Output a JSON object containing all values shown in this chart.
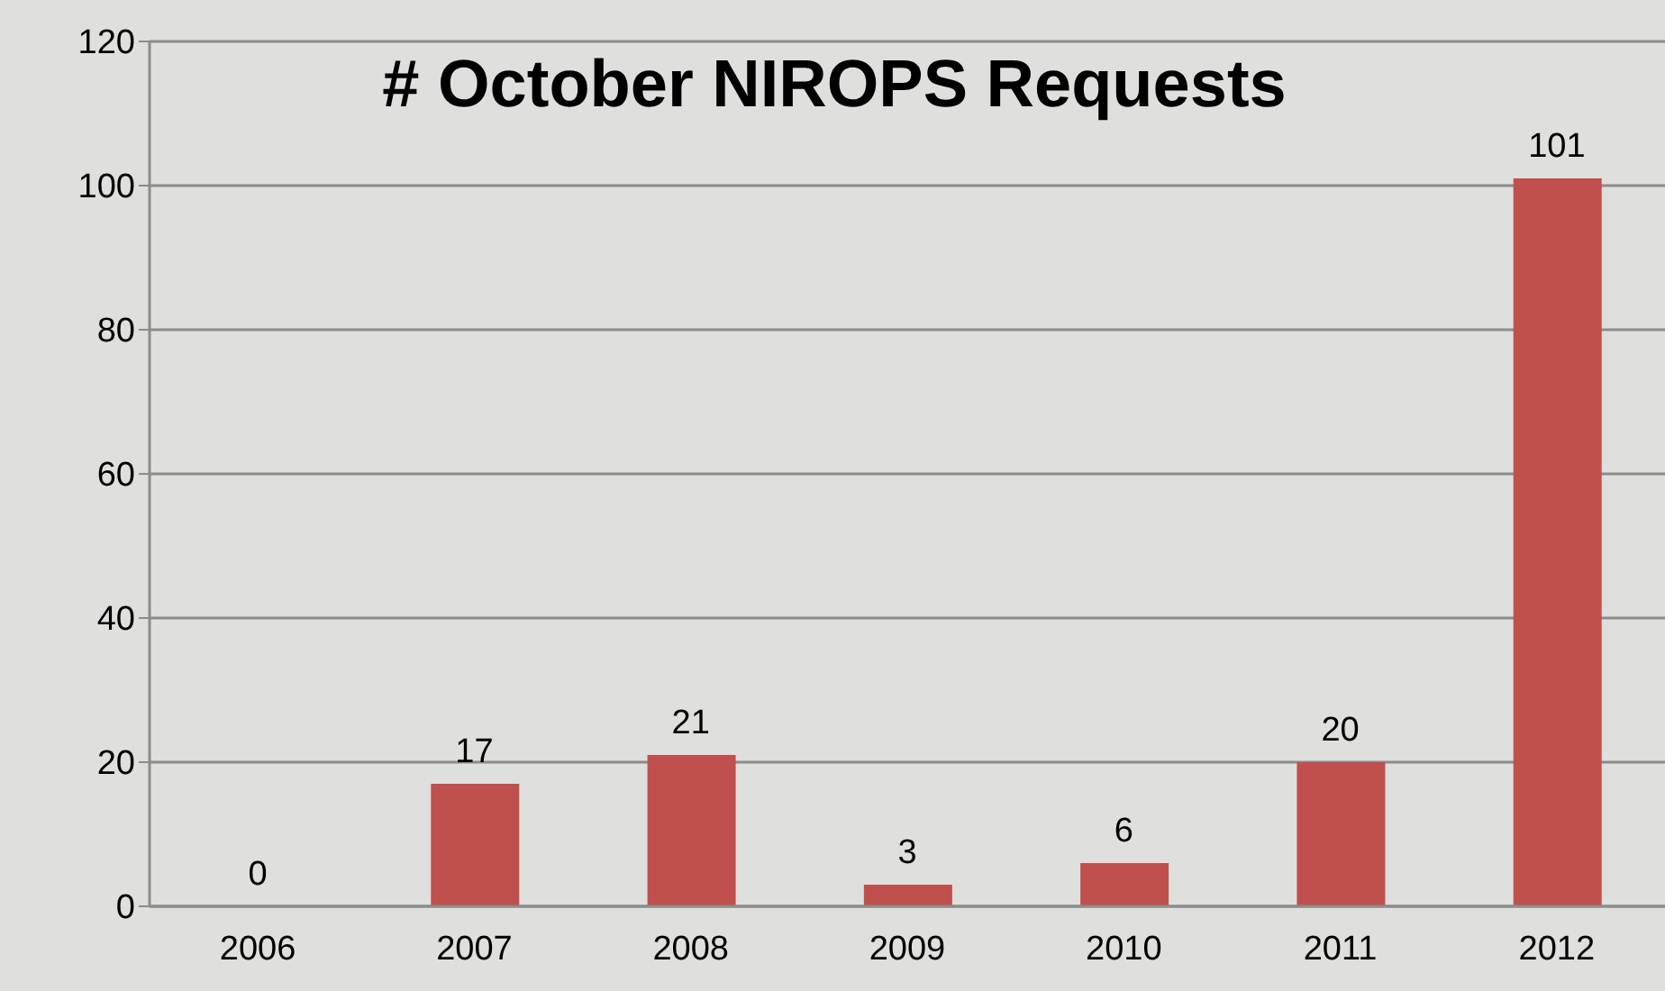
{
  "chart_data": {
    "type": "bar",
    "title": "# October NIROPS Requests",
    "categories": [
      "2006",
      "2007",
      "2008",
      "2009",
      "2010",
      "2011",
      "2012"
    ],
    "values": [
      0,
      17,
      21,
      3,
      6,
      20,
      101
    ],
    "color": "#c0504d",
    "ylim": [
      0,
      120
    ],
    "yticks": [
      0,
      20,
      40,
      60,
      80,
      100,
      120
    ],
    "grid": "y",
    "data_labels": true
  }
}
